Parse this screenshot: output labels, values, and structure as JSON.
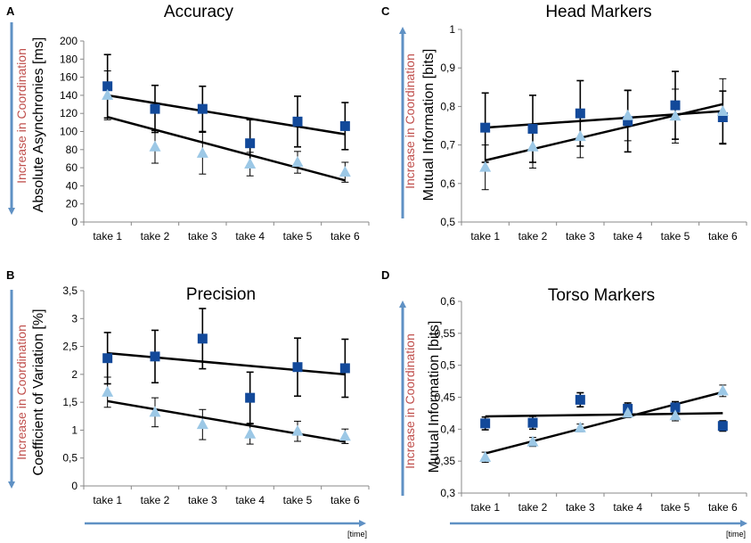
{
  "colors": {
    "dark_series": "#12499a",
    "light_series": "#9cc8e6",
    "trend": "#000000",
    "arrow": "#5f91c4",
    "coordination_text": "#c0504d"
  },
  "annotations": {
    "coordination": "Increase in Coordination",
    "time": "[time]"
  },
  "chart_data": [
    {
      "id": "A",
      "type": "scatter",
      "panel_letter": "A",
      "title": "Accuracy",
      "xlabel": "",
      "ylabel": "Absolute Asynchronies [ms]",
      "categories": [
        "take 1",
        "take 2",
        "take 3",
        "take 4",
        "take 5",
        "take 6"
      ],
      "ylim": [
        0,
        200
      ],
      "yticks": [
        "0",
        "20",
        "40",
        "60",
        "80",
        "100",
        "120",
        "140",
        "160",
        "180",
        "200"
      ],
      "ytick_values": [
        0,
        20,
        40,
        60,
        80,
        100,
        120,
        140,
        160,
        180,
        200
      ],
      "grid": false,
      "series": [
        {
          "name": "dark squares",
          "marker": "square",
          "values": [
            150,
            125,
            125,
            87,
            111,
            106
          ],
          "err": [
            35,
            26,
            25,
            26,
            28,
            26
          ]
        },
        {
          "name": "light triangles",
          "marker": "triangle",
          "values": [
            140,
            83,
            76,
            64,
            66,
            55
          ],
          "err": [
            27,
            18,
            23,
            13,
            12,
            11
          ]
        }
      ],
      "trendlines": [
        {
          "series": "dark squares",
          "start": 140,
          "end": 97
        },
        {
          "series": "light triangles",
          "start": 116,
          "end": 46
        }
      ]
    },
    {
      "id": "B",
      "type": "scatter",
      "panel_letter": "B",
      "title": "Precision",
      "xlabel": "",
      "ylabel": "Coefficient of Variation [%]",
      "categories": [
        "take 1",
        "take 2",
        "take 3",
        "take 4",
        "take 5",
        "take 6"
      ],
      "ylim": [
        0,
        3.5
      ],
      "yticks": [
        "0",
        "0,5",
        "1",
        "1,5",
        "2",
        "2,5",
        "3",
        "3,5"
      ],
      "ytick_values": [
        0,
        0.5,
        1,
        1.5,
        2,
        2.5,
        3,
        3.5
      ],
      "grid": false,
      "series": [
        {
          "name": "dark squares",
          "marker": "square",
          "values": [
            2.29,
            2.32,
            2.64,
            1.58,
            2.13,
            2.11
          ],
          "err": [
            0.46,
            0.47,
            0.54,
            0.46,
            0.52,
            0.52
          ]
        },
        {
          "name": "light triangles",
          "marker": "triangle",
          "values": [
            1.68,
            1.32,
            1.1,
            0.93,
            0.98,
            0.89
          ],
          "err": [
            0.27,
            0.26,
            0.27,
            0.18,
            0.18,
            0.13
          ]
        }
      ],
      "trendlines": [
        {
          "series": "dark squares",
          "start": 2.38,
          "end": 2.0
        },
        {
          "series": "light triangles",
          "start": 1.52,
          "end": 0.79
        }
      ]
    },
    {
      "id": "C",
      "type": "scatter",
      "panel_letter": "C",
      "title": "Head Markers",
      "xlabel": "",
      "ylabel": "Mutual Information [bits]",
      "categories": [
        "take 1",
        "take 2",
        "take 3",
        "take 4",
        "take 5",
        "take 6"
      ],
      "ylim": [
        0.5,
        1
      ],
      "yticks": [
        "0,5",
        "0,6",
        "0,7",
        "0,8",
        "0,9",
        "1"
      ],
      "ytick_values": [
        0.5,
        0.6,
        0.7,
        0.8,
        0.9,
        1
      ],
      "grid": false,
      "series": [
        {
          "name": "dark squares",
          "marker": "square",
          "values": [
            0.745,
            0.742,
            0.782,
            0.762,
            0.803,
            0.772
          ],
          "err": [
            0.09,
            0.087,
            0.085,
            0.08,
            0.088,
            0.068
          ]
        },
        {
          "name": "light triangles",
          "marker": "triangle",
          "values": [
            0.642,
            0.695,
            0.722,
            0.776,
            0.775,
            0.787
          ],
          "err": [
            0.058,
            0.055,
            0.055,
            0.065,
            0.07,
            0.085
          ]
        }
      ],
      "trendlines": [
        {
          "series": "dark squares",
          "start": 0.745,
          "end": 0.788
        },
        {
          "series": "light triangles",
          "start": 0.66,
          "end": 0.806
        }
      ]
    },
    {
      "id": "D",
      "type": "scatter",
      "panel_letter": "D",
      "title": "Torso Markers",
      "xlabel": "",
      "ylabel": "Mutual Information [bits]",
      "categories": [
        "take 1",
        "take 2",
        "take 3",
        "take 4",
        "take 5",
        "take 6"
      ],
      "ylim": [
        0.3,
        0.6
      ],
      "yticks": [
        "0,3",
        "0,35",
        "0,4",
        "0,45",
        "0,5",
        "0,55",
        "0,6"
      ],
      "ytick_values": [
        0.3,
        0.35,
        0.4,
        0.45,
        0.5,
        0.55,
        0.6
      ],
      "grid": false,
      "series": [
        {
          "name": "dark squares",
          "marker": "square",
          "values": [
            0.409,
            0.41,
            0.446,
            0.432,
            0.434,
            0.405
          ],
          "err": [
            0.01,
            0.01,
            0.011,
            0.009,
            0.009,
            0.008
          ]
        },
        {
          "name": "light triangles",
          "marker": "triangle",
          "values": [
            0.356,
            0.38,
            0.402,
            0.425,
            0.421,
            0.46
          ],
          "err": [
            0.008,
            0.007,
            0.006,
            0.007,
            0.008,
            0.009
          ]
        }
      ],
      "trendlines": [
        {
          "series": "dark squares",
          "start": 0.42,
          "end": 0.425
        },
        {
          "series": "light triangles",
          "start": 0.362,
          "end": 0.458
        }
      ]
    }
  ]
}
